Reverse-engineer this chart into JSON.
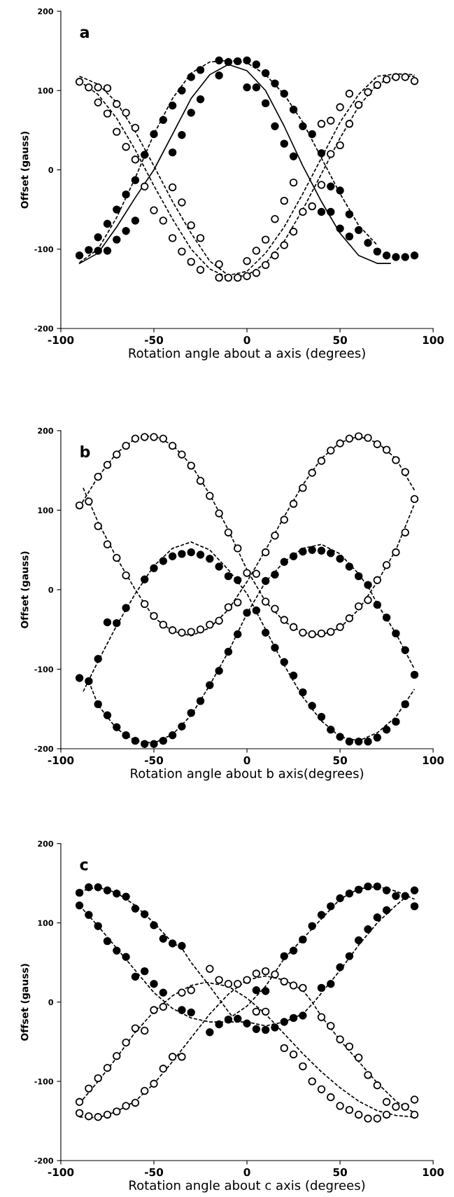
{
  "chart_data": [
    {
      "type": "scatter",
      "title": "a",
      "xlabel": "Rotation angle about a axis (degrees)",
      "ylabel": "Offset (gauss)",
      "xlim": [
        -100,
        100
      ],
      "ylim": [
        -200,
        200
      ],
      "xticks": [
        -100,
        -50,
        0,
        50,
        100
      ],
      "yticks": [
        -200,
        -100,
        0,
        100,
        200
      ],
      "grid": false,
      "series": [
        {
          "type": "line",
          "color": "#000000",
          "line_style": "dashed",
          "x": [
            -90,
            -80,
            -70,
            -60,
            -50,
            -40,
            -30,
            -20,
            -10,
            0,
            10,
            20,
            30,
            40,
            50,
            60,
            70
          ],
          "values": [
            -117,
            -100,
            -60,
            -10,
            45,
            90,
            122,
            136,
            138,
            135,
            120,
            95,
            60,
            15,
            -30,
            -70,
            -95
          ]
        },
        {
          "type": "line",
          "color": "#000000",
          "line_style": "solid",
          "x": [
            -90,
            -80,
            -70,
            -60,
            -50,
            -40,
            -30,
            -20,
            -10,
            0,
            10,
            20,
            30,
            40,
            50,
            60,
            70,
            77
          ],
          "values": [
            -118,
            -105,
            -72,
            -35,
            0,
            45,
            90,
            120,
            133,
            125,
            100,
            55,
            5,
            -40,
            -80,
            -108,
            -118,
            -118
          ]
        },
        {
          "type": "line",
          "color": "#000000",
          "line_style": "dashed",
          "x": [
            -90,
            -80,
            -70,
            -60,
            -50,
            -40,
            -30,
            -20,
            -10,
            0,
            10,
            20,
            30,
            40,
            50,
            60,
            70,
            80,
            90
          ],
          "values": [
            118,
            108,
            85,
            48,
            5,
            -40,
            -80,
            -115,
            -133,
            -128,
            -105,
            -72,
            -30,
            15,
            60,
            95,
            118,
            121,
            120
          ]
        },
        {
          "type": "line",
          "color": "#000000",
          "line_style": "dashed",
          "x": [
            -90,
            -80,
            -70,
            -60,
            -50,
            -40,
            -30,
            -20,
            -10,
            0,
            10,
            20,
            30,
            40,
            50,
            60,
            70,
            80,
            90
          ],
          "values": [
            112,
            95,
            65,
            25,
            -20,
            -62,
            -100,
            -125,
            -136,
            -133,
            -118,
            -90,
            -50,
            -5,
            40,
            80,
            108,
            118,
            118
          ]
        },
        {
          "color": "#000000",
          "marker": "circle",
          "x": [
            -90,
            -85,
            -80,
            -75,
            -70,
            -65,
            -60,
            -55,
            -50,
            -45,
            -40,
            -35,
            -30,
            -25,
            -15,
            -10,
            -5,
            0,
            5,
            10,
            15,
            20,
            25,
            30,
            35,
            40,
            45,
            50,
            55,
            60,
            65,
            70,
            75,
            80,
            85,
            90,
            -80,
            -75,
            -70,
            -65,
            -60,
            -40,
            -35,
            -30,
            -25,
            -15,
            0,
            5,
            10,
            15,
            20,
            25,
            40,
            45,
            50,
            55
          ],
          "values": [
            -108,
            -101,
            -85,
            -68,
            -50,
            -31,
            -13,
            19,
            45,
            63,
            81,
            100,
            117,
            126,
            138,
            136,
            137,
            138,
            133,
            122,
            109,
            96,
            76,
            55,
            45,
            21,
            -21,
            -26,
            -56,
            -76,
            -92,
            -103,
            -108,
            -110,
            -110,
            -108,
            -102,
            -102,
            -88,
            -77,
            -64,
            22,
            44,
            72,
            89,
            119,
            104,
            104,
            84,
            55,
            33,
            17,
            -53,
            -53,
            -74,
            -84
          ]
        },
        {
          "color": "#ffffff",
          "marker": "circle",
          "x": [
            -90,
            -85,
            -80,
            -75,
            -70,
            -65,
            -60,
            -80,
            -75,
            -70,
            -65,
            -60,
            -55,
            -50,
            -45,
            -40,
            -35,
            -30,
            -25,
            -15,
            -10,
            -5,
            0,
            5,
            10,
            15,
            20,
            25,
            30,
            35,
            40,
            45,
            50,
            55,
            60,
            65,
            70,
            75,
            80,
            85,
            90,
            -40,
            -35,
            -30,
            -25,
            -15,
            0,
            5,
            10,
            15,
            20,
            25,
            40,
            45,
            50,
            55
          ],
          "values": [
            111,
            104,
            104,
            103,
            83,
            72,
            53,
            85,
            71,
            48,
            29,
            13,
            -21,
            -51,
            -64,
            -86,
            -103,
            -116,
            -126,
            -136,
            -136,
            -136,
            -134,
            -130,
            -120,
            -108,
            -95,
            -78,
            -53,
            -46,
            -19,
            20,
            31,
            58,
            82,
            98,
            107,
            114,
            117,
            117,
            112,
            -22,
            -41,
            -70,
            -86,
            -119,
            -115,
            -102,
            -88,
            -62,
            -39,
            -16,
            58,
            62,
            79,
            96
          ]
        }
      ]
    },
    {
      "type": "scatter",
      "title": "b",
      "xlabel": "Rotation angle about b axis(degrees)",
      "ylabel": "Offset (gauss)",
      "xlim": [
        -100,
        100
      ],
      "ylim": [
        -200,
        200
      ],
      "xticks": [
        -100,
        -50,
        0,
        50,
        100
      ],
      "yticks": [
        -200,
        -100,
        0,
        100,
        200
      ],
      "grid": false,
      "series": [
        {
          "type": "line",
          "color": "#000000",
          "line_style": "dashed",
          "x": [
            -88,
            -80,
            -70,
            -60,
            -50,
            -40,
            -30,
            -20,
            -10,
            0,
            10,
            20,
            30,
            40,
            50,
            60,
            70,
            80,
            90
          ],
          "values": [
            128,
            85,
            40,
            0,
            -35,
            -52,
            -58,
            -48,
            -25,
            10,
            50,
            92,
            132,
            165,
            185,
            193,
            185,
            165,
            125
          ]
        },
        {
          "type": "line",
          "color": "#000000",
          "line_style": "dashed",
          "x": [
            -90,
            -80,
            -70,
            -60,
            -50,
            -40,
            -30,
            -20,
            -10,
            0,
            10,
            20,
            30,
            40,
            50,
            60,
            70,
            80,
            90
          ],
          "values": [
            104,
            142,
            172,
            190,
            194,
            182,
            157,
            120,
            75,
            25,
            -15,
            -40,
            -54,
            -57,
            -48,
            -25,
            10,
            50,
            108
          ]
        },
        {
          "type": "line",
          "color": "#000000",
          "line_style": "dashed",
          "x": [
            -88,
            -80,
            -70,
            -60,
            -50,
            -40,
            -30,
            -20,
            -10,
            0,
            10,
            20,
            30,
            40,
            50,
            60,
            70,
            80,
            90
          ],
          "values": [
            -128,
            -90,
            -45,
            -5,
            30,
            52,
            60,
            50,
            25,
            -5,
            -50,
            -95,
            -135,
            -165,
            -185,
            -190,
            -180,
            -160,
            -125
          ]
        },
        {
          "type": "line",
          "color": "#000000",
          "line_style": "dashed",
          "x": [
            -85,
            -80,
            -70,
            -60,
            -50,
            -40,
            -30,
            -20,
            -10,
            0,
            10,
            20,
            30,
            40,
            50,
            60,
            66,
            70,
            80,
            90
          ],
          "values": [
            -115,
            -145,
            -175,
            -190,
            -193,
            -182,
            -158,
            -120,
            -78,
            -30,
            10,
            35,
            52,
            57,
            45,
            20,
            0,
            -18,
            -55,
            -100
          ]
        },
        {
          "color": "#000000",
          "marker": "circle",
          "x": [
            -90,
            -75,
            -70,
            -65,
            -55,
            -50,
            -45,
            -40,
            -35,
            -30,
            -25,
            -20,
            -15,
            -10,
            -5,
            0,
            5,
            10,
            15,
            20,
            25,
            30,
            35,
            40,
            45,
            50,
            55,
            60,
            65,
            70,
            75,
            80,
            85,
            -85,
            -80,
            -80,
            -75,
            -70,
            -65,
            -60,
            -55,
            -50,
            -45,
            -40,
            -35,
            -30,
            -25,
            -20,
            -15,
            -10,
            -5,
            10,
            15,
            20,
            25,
            30,
            35,
            40,
            45,
            50,
            55,
            60,
            65,
            70,
            75,
            80,
            85,
            90
          ],
          "values": [
            -111,
            -41,
            -42,
            -23,
            13,
            27,
            36,
            42,
            45,
            47,
            44,
            39,
            29,
            17,
            12,
            -29,
            -26,
            -54,
            -73,
            -91,
            -108,
            -129,
            -146,
            -160,
            -176,
            -185,
            -191,
            -191,
            -191,
            -186,
            -176,
            -166,
            -144,
            -115,
            -87,
            -144,
            -158,
            -173,
            -183,
            -190,
            -194,
            -194,
            -190,
            -183,
            -172,
            -155,
            -140,
            -120,
            -102,
            -78,
            -56,
            11,
            19,
            35,
            42,
            48,
            50,
            49,
            46,
            39,
            29,
            17,
            6,
            -19,
            -35,
            -55,
            -76,
            -107
          ]
        },
        {
          "color": "#ffffff",
          "marker": "circle",
          "x": [
            -90,
            -80,
            -75,
            -70,
            -65,
            -60,
            -55,
            -50,
            -45,
            -40,
            -35,
            -30,
            -25,
            -20,
            -15,
            -10,
            -5,
            0,
            5,
            10,
            15,
            20,
            25,
            30,
            35,
            40,
            45,
            50,
            55,
            60,
            65,
            70,
            75,
            80,
            85,
            90,
            -85,
            -80,
            -75,
            -70,
            -65,
            -55,
            -50,
            -45,
            -40,
            -35,
            -30,
            -25,
            -20,
            -15,
            -10,
            -5,
            10,
            15,
            20,
            25,
            30,
            35,
            40,
            45,
            50,
            55,
            60,
            65,
            70,
            75,
            80,
            85
          ],
          "values": [
            106,
            142,
            157,
            170,
            181,
            190,
            192,
            192,
            190,
            181,
            170,
            156,
            137,
            118,
            96,
            72,
            52,
            21,
            20,
            -15,
            -24,
            -38,
            -47,
            -54,
            -56,
            -55,
            -53,
            -47,
            -36,
            -21,
            -13,
            12,
            31,
            47,
            72,
            114,
            111,
            80,
            57,
            40,
            18,
            -18,
            -33,
            -44,
            -51,
            -54,
            -53,
            -50,
            -44,
            -39,
            -22,
            -16,
            47,
            68,
            88,
            108,
            128,
            147,
            162,
            175,
            184,
            190,
            193,
            191,
            183,
            176,
            163,
            148
          ]
        }
      ]
    },
    {
      "type": "scatter",
      "title": "c",
      "xlabel": "Rotation angle about c axis (degrees)",
      "ylabel": "Offset (gauss)",
      "xlim": [
        -100,
        100
      ],
      "ylim": [
        -200,
        200
      ],
      "xticks": [
        -100,
        -50,
        0,
        50,
        100
      ],
      "yticks": [
        -200,
        -100,
        0,
        100,
        200
      ],
      "grid": false,
      "series": [
        {
          "type": "line",
          "color": "#000000",
          "line_style": "dashed",
          "x": [
            -90,
            -80,
            -70,
            -60,
            -50,
            -40,
            -35,
            -30,
            -20,
            -10,
            -8,
            0,
            10,
            20,
            30,
            40,
            50,
            60,
            70,
            80,
            90
          ],
          "values": [
            140,
            145,
            138,
            122,
            100,
            75,
            68,
            50,
            20,
            -12,
            -18,
            -5,
            20,
            55,
            80,
            105,
            130,
            143,
            146,
            140,
            130
          ]
        },
        {
          "type": "line",
          "color": "#000000",
          "line_style": "dashed",
          "x": [
            -90,
            -80,
            -70,
            -60,
            -50,
            -40,
            -30,
            -20,
            -10,
            0,
            10,
            20,
            30,
            36,
            50,
            60,
            70,
            80,
            85
          ],
          "values": [
            122,
            96,
            68,
            40,
            12,
            -8,
            -20,
            -25,
            -25,
            -25,
            -30,
            -25,
            -15,
            0,
            40,
            72,
            100,
            122,
            132
          ]
        },
        {
          "type": "line",
          "color": "#000000",
          "line_style": "dashed",
          "x": [
            -90,
            -80,
            -70,
            -60,
            -50,
            -40,
            -30,
            -22,
            -10,
            0,
            10,
            20,
            30,
            40,
            50,
            60,
            70,
            80,
            90
          ],
          "values": [
            -128,
            -100,
            -70,
            -38,
            -12,
            8,
            21,
            25,
            20,
            5,
            -15,
            -40,
            -65,
            -88,
            -108,
            -125,
            -137,
            -143,
            -145
          ]
        },
        {
          "type": "line",
          "color": "#000000",
          "line_style": "dashed",
          "x": [
            -90,
            -80,
            -70,
            -60,
            -50,
            -40,
            -30,
            -20,
            -10,
            0,
            10,
            20,
            30,
            35,
            40,
            50,
            60,
            70,
            80,
            90
          ],
          "values": [
            -145,
            -146,
            -138,
            -125,
            -103,
            -75,
            -45,
            -15,
            10,
            28,
            33,
            28,
            15,
            0,
            -18,
            -48,
            -75,
            -102,
            -125,
            -140
          ]
        },
        {
          "color": "#000000",
          "marker": "circle",
          "x": [
            -90,
            -85,
            -80,
            -75,
            -70,
            -65,
            -60,
            -55,
            -50,
            -45,
            -40,
            -35,
            -20,
            -15,
            -10,
            -5,
            0,
            5,
            10,
            15,
            20,
            25,
            30,
            40,
            45,
            50,
            55,
            60,
            65,
            70,
            75,
            80,
            85,
            90,
            -90,
            -85,
            -80,
            -75,
            -70,
            -65,
            -60,
            -55,
            -50,
            -45,
            -35,
            -30,
            5,
            10,
            20,
            25,
            30,
            35,
            40,
            45,
            50,
            55,
            60,
            65,
            70,
            75,
            90
          ],
          "values": [
            138,
            145,
            145,
            141,
            137,
            133,
            118,
            111,
            97,
            80,
            74,
            71,
            -38,
            -28,
            -22,
            -21,
            -27,
            -34,
            -35,
            -32,
            -25,
            -20,
            -17,
            18,
            23,
            44,
            58,
            78,
            92,
            107,
            116,
            134,
            134,
            121,
            122,
            110,
            96,
            77,
            65,
            57,
            32,
            39,
            23,
            12,
            -10,
            -13,
            15,
            14,
            58,
            65,
            79,
            96,
            110,
            121,
            131,
            137,
            142,
            146,
            146,
            141,
            141
          ]
        },
        {
          "color": "#ffffff",
          "marker": "circle",
          "x": [
            -90,
            -85,
            -80,
            -75,
            -70,
            -65,
            -60,
            -55,
            -50,
            -45,
            -35,
            -30,
            -20,
            -15,
            -10,
            -5,
            0,
            5,
            10,
            15,
            20,
            25,
            30,
            40,
            45,
            50,
            55,
            60,
            65,
            70,
            75,
            80,
            85,
            90,
            -90,
            -85,
            -80,
            -75,
            -70,
            -65,
            -60,
            -55,
            -50,
            -45,
            -40,
            -35,
            5,
            10,
            20,
            25,
            30,
            35,
            40,
            45,
            50,
            55,
            60,
            65,
            70,
            75,
            90
          ],
          "values": [
            -126,
            -109,
            -96,
            -83,
            -68,
            -51,
            -33,
            -36,
            -10,
            -6,
            12,
            15,
            42,
            28,
            23,
            23,
            28,
            36,
            39,
            35,
            26,
            21,
            18,
            -19,
            -30,
            -47,
            -56,
            -70,
            -92,
            -105,
            -126,
            -132,
            -132,
            -123,
            -140,
            -144,
            -145,
            -142,
            -138,
            -131,
            -127,
            -112,
            -103,
            -84,
            -69,
            -69,
            -12,
            -12,
            -58,
            -66,
            -81,
            -100,
            -110,
            -120,
            -131,
            -136,
            -142,
            -147,
            -147,
            -142,
            -142
          ]
        }
      ]
    }
  ]
}
